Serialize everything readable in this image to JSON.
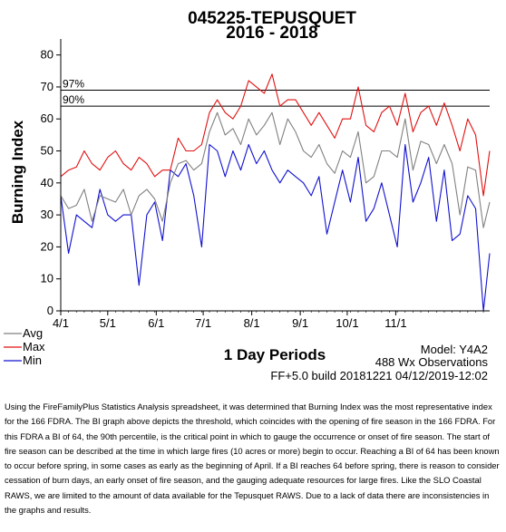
{
  "chart_data": {
    "type": "line",
    "title": "045225-TEPUSQUET",
    "subtitle": "2016 - 2018",
    "ylabel": "Burning Index",
    "xlabel": "1 Day Periods",
    "ylim": [
      0,
      85
    ],
    "yticks": [
      0,
      10,
      20,
      30,
      40,
      50,
      60,
      70,
      80
    ],
    "xlim": [
      91,
      365
    ],
    "xticks": [
      {
        "label": "4/1",
        "day": 91
      },
      {
        "label": "5/1",
        "day": 121
      },
      {
        "label": "6/1",
        "day": 152
      },
      {
        "label": "7/1",
        "day": 182
      },
      {
        "label": "8/1",
        "day": 213
      },
      {
        "label": "9/1",
        "day": 244
      },
      {
        "label": "10/1",
        "day": 274
      },
      {
        "label": "11/1",
        "day": 305
      }
    ],
    "percentiles": [
      {
        "label": "97%",
        "value": 69
      },
      {
        "label": "90%",
        "value": 64
      }
    ],
    "legend": [
      "Avg",
      "Max",
      "Min"
    ],
    "legend_position": "bottom-left",
    "series_colors": {
      "Avg": "#808080",
      "Max": "#e01010",
      "Min": "#1010d0"
    },
    "x": [
      91,
      96,
      101,
      106,
      111,
      116,
      121,
      126,
      131,
      136,
      141,
      146,
      151,
      156,
      161,
      166,
      171,
      176,
      181,
      186,
      191,
      196,
      201,
      206,
      211,
      216,
      221,
      226,
      231,
      236,
      241,
      246,
      251,
      256,
      261,
      266,
      271,
      276,
      281,
      286,
      291,
      296,
      301,
      306,
      311,
      316,
      321,
      326,
      331,
      336,
      341,
      346,
      351,
      356,
      361,
      365
    ],
    "series": [
      {
        "name": "Avg",
        "values": [
          36,
          32,
          33,
          38,
          28,
          36,
          35,
          34,
          38,
          30,
          36,
          38,
          35,
          28,
          40,
          46,
          47,
          44,
          46,
          56,
          62,
          55,
          57,
          52,
          60,
          55,
          58,
          62,
          52,
          60,
          56,
          50,
          48,
          52,
          46,
          43,
          50,
          48,
          56,
          40,
          42,
          50,
          50,
          48,
          60,
          44,
          53,
          52,
          46,
          52,
          46,
          30,
          45,
          44,
          26,
          34
        ]
      },
      {
        "name": "Max",
        "values": [
          42,
          44,
          45,
          50,
          46,
          44,
          48,
          50,
          46,
          44,
          48,
          46,
          42,
          44,
          44,
          54,
          50,
          50,
          52,
          62,
          66,
          62,
          60,
          64,
          72,
          70,
          68,
          74,
          64,
          66,
          66,
          62,
          58,
          62,
          58,
          54,
          60,
          60,
          70,
          58,
          56,
          62,
          64,
          58,
          68,
          56,
          62,
          64,
          58,
          65,
          58,
          50,
          60,
          55,
          36,
          50
        ]
      },
      {
        "name": "Min",
        "values": [
          36,
          18,
          30,
          28,
          26,
          38,
          30,
          28,
          30,
          30,
          8,
          30,
          34,
          22,
          44,
          42,
          46,
          36,
          20,
          52,
          50,
          42,
          50,
          44,
          52,
          46,
          50,
          44,
          40,
          44,
          42,
          40,
          36,
          42,
          24,
          34,
          44,
          34,
          48,
          28,
          32,
          40,
          30,
          20,
          52,
          34,
          40,
          48,
          28,
          44,
          22,
          24,
          36,
          32,
          0,
          18
        ]
      }
    ],
    "model_info": "Model: Y4A2",
    "observations_info": "488 Wx Observations",
    "build_info": "FF+5.0 build 20181221 04/12/2019-12:02"
  },
  "caption": "Using the FireFamilyPlus Statistics Analysis spreadsheet, it was determined that Burning Index was the most representative index for the 166 FDRA.  The BI graph above depicts the threshold, which coincides with the opening of fire season in the 166 FDRA.  For this FDRA a BI of 64, the 90th percentile, is the critical point in which to gauge the occurrence or onset of fire season. The start of fire season can be described at the time in which large fires (10 acres or more) begin to occur. Reaching a BI of 64 has been known to occur before spring, in some cases as early as the beginning of April. If a BI reaches 64 before spring, there is reason to consider cessation of burn days, an early onset of fire season, and the gauging adequate resources for large fires. Like the SLO Coastal RAWS, we are limited to the amount of data available for the Tepusquet RAWS. Due to a lack of data there are inconsistencies in the graphs and results."
}
